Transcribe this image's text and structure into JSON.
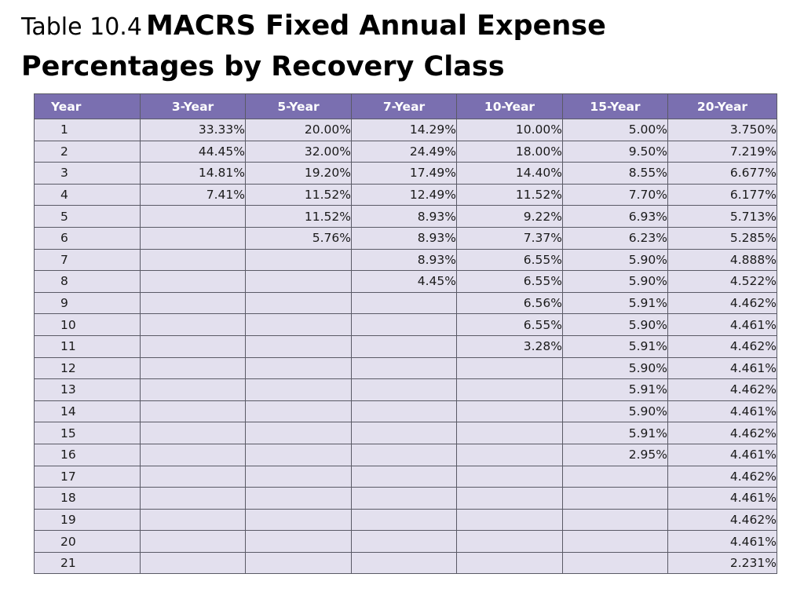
{
  "title": {
    "prefix": "Table 10.4",
    "main": "MACRS Fixed Annual Expense Percentages by Recovery Class"
  },
  "table": {
    "headers": [
      "Year",
      "3-Year",
      "5-Year",
      "7-Year",
      "10-Year",
      "15-Year",
      "20-Year"
    ],
    "rows": [
      [
        "1",
        "33.33%",
        "20.00%",
        "14.29%",
        "10.00%",
        "5.00%",
        "3.750%"
      ],
      [
        "2",
        "44.45%",
        "32.00%",
        "24.49%",
        "18.00%",
        "9.50%",
        "7.219%"
      ],
      [
        "3",
        "14.81%",
        "19.20%",
        "17.49%",
        "14.40%",
        "8.55%",
        "6.677%"
      ],
      [
        "4",
        "7.41%",
        "11.52%",
        "12.49%",
        "11.52%",
        "7.70%",
        "6.177%"
      ],
      [
        "5",
        "",
        "11.52%",
        "8.93%",
        "9.22%",
        "6.93%",
        "5.713%"
      ],
      [
        "6",
        "",
        "5.76%",
        "8.93%",
        "7.37%",
        "6.23%",
        "5.285%"
      ],
      [
        "7",
        "",
        "",
        "8.93%",
        "6.55%",
        "5.90%",
        "4.888%"
      ],
      [
        "8",
        "",
        "",
        "4.45%",
        "6.55%",
        "5.90%",
        "4.522%"
      ],
      [
        "9",
        "",
        "",
        "",
        "6.56%",
        "5.91%",
        "4.462%"
      ],
      [
        "10",
        "",
        "",
        "",
        "6.55%",
        "5.90%",
        "4.461%"
      ],
      [
        "11",
        "",
        "",
        "",
        "3.28%",
        "5.91%",
        "4.462%"
      ],
      [
        "12",
        "",
        "",
        "",
        "",
        "5.90%",
        "4.461%"
      ],
      [
        "13",
        "",
        "",
        "",
        "",
        "5.91%",
        "4.462%"
      ],
      [
        "14",
        "",
        "",
        "",
        "",
        "5.90%",
        "4.461%"
      ],
      [
        "15",
        "",
        "",
        "",
        "",
        "5.91%",
        "4.462%"
      ],
      [
        "16",
        "",
        "",
        "",
        "",
        "2.95%",
        "4.461%"
      ],
      [
        "17",
        "",
        "",
        "",
        "",
        "",
        "4.462%"
      ],
      [
        "18",
        "",
        "",
        "",
        "",
        "",
        "4.461%"
      ],
      [
        "19",
        "",
        "",
        "",
        "",
        "",
        "4.462%"
      ],
      [
        "20",
        "",
        "",
        "",
        "",
        "",
        "4.461%"
      ],
      [
        "21",
        "",
        "",
        "",
        "",
        "",
        "2.231%"
      ]
    ]
  },
  "colors": {
    "header_bg": "#7a6fb0",
    "cell_bg": "#e3e0ee",
    "border": "#5a5a66"
  }
}
